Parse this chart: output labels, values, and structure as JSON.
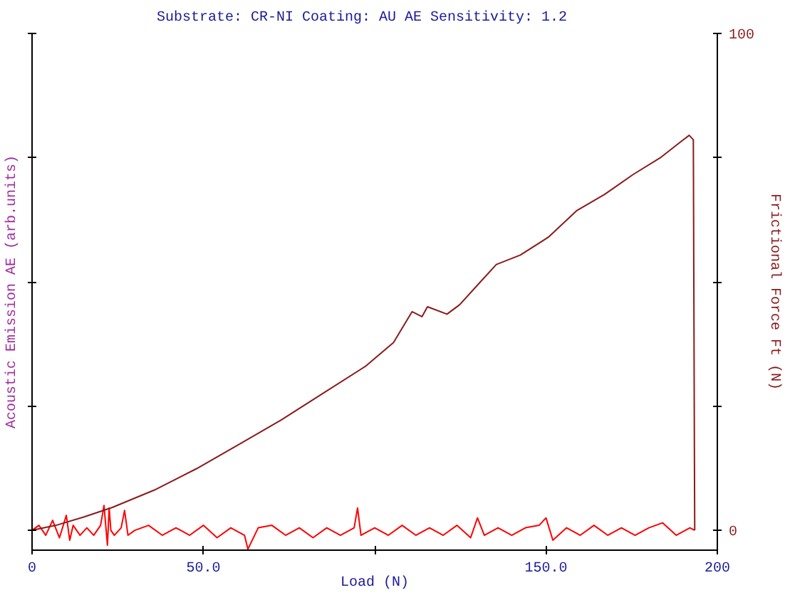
{
  "chart_data": {
    "type": "line",
    "subtitle": "Substrate: CR-NI   Coating: AU  AE Sensitivity: 1.2",
    "xlabel": "Load (N)",
    "ylabel": "Acoustic Emission AE (arb.units)",
    "y2label": "Frictional Force Ft (N)",
    "xlim": [
      0,
      200
    ],
    "xticks": [
      0,
      {
        "value": 50,
        "label": "50.0"
      },
      {
        "value": 100,
        "label": null
      },
      {
        "value": 150,
        "label": "150.0"
      },
      200
    ],
    "y2lim": [
      -4,
      100
    ],
    "y2ticks": [
      0,
      {
        "value": 25,
        "label": null
      },
      {
        "value": 50,
        "label": null
      },
      {
        "value": 75,
        "label": null
      },
      100
    ],
    "grid": false,
    "series": [
      {
        "color": "#ff0000",
        "axis": "y2",
        "x": [
          0,
          2,
          4,
          6,
          8,
          10,
          11,
          12,
          14,
          16,
          18,
          20,
          21,
          22,
          22.5,
          23,
          24,
          26,
          27,
          28,
          30,
          34,
          38,
          42,
          46,
          50,
          54,
          58,
          62,
          63,
          66,
          70,
          74,
          78,
          82,
          86,
          90,
          94,
          95,
          96,
          100,
          104,
          108,
          112,
          116,
          120,
          124,
          128,
          130,
          132,
          136,
          140,
          144,
          148,
          150,
          152,
          156,
          160,
          164,
          168,
          172,
          176,
          180,
          184,
          188,
          192,
          193.4
        ],
        "values": [
          0,
          1,
          -1,
          2,
          -1.5,
          3,
          -2,
          1,
          -1,
          0.5,
          -1,
          1,
          5,
          -3,
          4.5,
          0,
          -1,
          0.5,
          4,
          -1,
          0,
          1,
          -1,
          0.5,
          -1,
          1,
          -1.5,
          0.5,
          -1,
          -3.8,
          0.5,
          1,
          -1,
          0.5,
          -1.5,
          0.5,
          -1,
          0.5,
          4.5,
          -1,
          0.5,
          -1,
          1,
          -1,
          0.5,
          -1,
          1,
          -1.5,
          2.5,
          -1,
          0.5,
          -1,
          0.5,
          1,
          2.5,
          -2,
          0.5,
          -1,
          1,
          -1,
          0.5,
          -1,
          0.5,
          1.5,
          -1,
          0.5,
          0
        ]
      },
      {
        "color": "#8b1a1a",
        "axis": "y2",
        "x": [
          0,
          7,
          15.2,
          23.4,
          35.7,
          48,
          60.4,
          72.7,
          85,
          97.3,
          105.5,
          110.9,
          113.8,
          115.4,
          121.1,
          124.8,
          130.2,
          135.5,
          142.5,
          150.7,
          158.9,
          167.1,
          175.4,
          183.6,
          189.7,
          191.8,
          193,
          193.3,
          193.4
        ],
        "values": [
          0,
          1,
          2.7,
          4.6,
          8.1,
          12.4,
          17.3,
          22.2,
          27.6,
          33,
          37.8,
          44,
          43,
          45,
          43.5,
          45.4,
          49.5,
          53.5,
          55.4,
          59,
          64.3,
          67.6,
          71.6,
          75.1,
          78.4,
          79.5,
          78.6,
          18,
          0
        ]
      }
    ]
  }
}
